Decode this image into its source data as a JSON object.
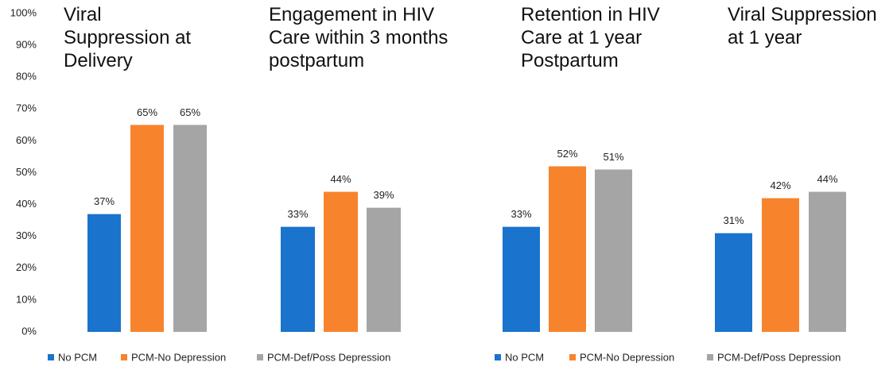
{
  "chart_data": {
    "type": "bar",
    "categories": [
      "Viral Suppression at Delivery",
      "Engagement in HIV Care within 3 months postpartum",
      "Retention in HIV Care at 1 year Postpartum",
      "Viral Suppression at 1 year"
    ],
    "series": [
      {
        "name": "No PCM",
        "color": "#1a73cc",
        "values": [
          37,
          33,
          33,
          31
        ],
        "value_labels": [
          "37%",
          "33%",
          "33%",
          "31%"
        ]
      },
      {
        "name": "PCM-No Depression",
        "color": "#f7842c",
        "values": [
          65,
          44,
          52,
          42
        ],
        "value_labels": [
          "65%",
          "44%",
          "52%",
          "42%"
        ]
      },
      {
        "name": "PCM-Def/Poss Depression",
        "color": "#a5a5a5",
        "values": [
          65,
          39,
          51,
          44
        ],
        "value_labels": [
          "65%",
          "39%",
          "51%",
          "44%"
        ]
      }
    ],
    "ylim": [
      0,
      100
    ],
    "yticks": [
      {
        "value": 0,
        "label": "0%"
      },
      {
        "value": 10,
        "label": "10%"
      },
      {
        "value": 20,
        "label": "20%"
      },
      {
        "value": 30,
        "label": "30%"
      },
      {
        "value": 40,
        "label": "40%"
      },
      {
        "value": 50,
        "label": "50%"
      },
      {
        "value": 60,
        "label": "60%"
      },
      {
        "value": 70,
        "label": "70%"
      },
      {
        "value": 80,
        "label": "80%"
      },
      {
        "value": 90,
        "label": "90%"
      },
      {
        "value": 100,
        "label": "100%"
      }
    ],
    "grid": false
  }
}
